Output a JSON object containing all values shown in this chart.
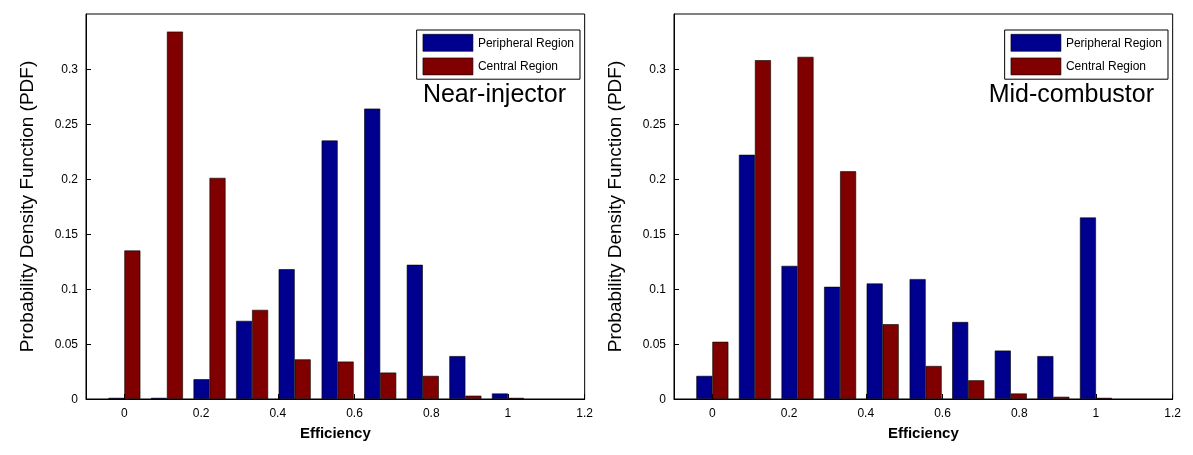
{
  "chart_data": [
    {
      "type": "bar",
      "xlabel": "Efficiency",
      "ylabel": "Probability Density Function (PDF)",
      "annotations": [
        "Near-injector"
      ],
      "x": [
        0,
        0.111,
        0.222,
        0.333,
        0.444,
        0.556,
        0.667,
        0.778,
        0.889,
        1
      ],
      "series": [
        {
          "name": "Peripheral Region",
          "color": "#00008f",
          "values": [
            0.001,
            0.001,
            0.018,
            0.071,
            0.118,
            0.235,
            0.264,
            0.122,
            0.039,
            0.005
          ]
        },
        {
          "name": "Central Region",
          "color": "#800000",
          "values": [
            0.135,
            0.334,
            0.201,
            0.081,
            0.036,
            0.034,
            0.024,
            0.021,
            0.003,
            0.001
          ]
        }
      ],
      "xlim": [
        -0.1,
        1.2
      ],
      "xticks": [
        0,
        0.2,
        0.4,
        0.6,
        0.8,
        1,
        1.2
      ],
      "ylim": [
        0,
        0.35
      ],
      "yticks": [
        0,
        0.05,
        0.1,
        0.15,
        0.2,
        0.25,
        0.3
      ],
      "grid": false,
      "legend": "top right"
    },
    {
      "type": "bar",
      "xlabel": "Efficiency",
      "ylabel": "Probability Density Function (PDF)",
      "annotations": [
        "Mid-combustor"
      ],
      "x": [
        0,
        0.111,
        0.222,
        0.333,
        0.444,
        0.556,
        0.667,
        0.778,
        0.889,
        1
      ],
      "series": [
        {
          "name": "Peripheral Region",
          "color": "#00008f",
          "values": [
            0.021,
            0.222,
            0.121,
            0.102,
            0.105,
            0.109,
            0.07,
            0.044,
            0.039,
            0.165
          ]
        },
        {
          "name": "Central Region",
          "color": "#800000",
          "values": [
            0.052,
            0.308,
            0.311,
            0.207,
            0.068,
            0.03,
            0.017,
            0.005,
            0.002,
            0.001
          ]
        }
      ],
      "xlim": [
        -0.1,
        1.2
      ],
      "xticks": [
        0,
        0.2,
        0.4,
        0.6,
        0.8,
        1,
        1.2
      ],
      "ylim": [
        0,
        0.35
      ],
      "yticks": [
        0,
        0.05,
        0.1,
        0.15,
        0.2,
        0.25,
        0.3
      ],
      "grid": false,
      "legend": "top right"
    }
  ]
}
